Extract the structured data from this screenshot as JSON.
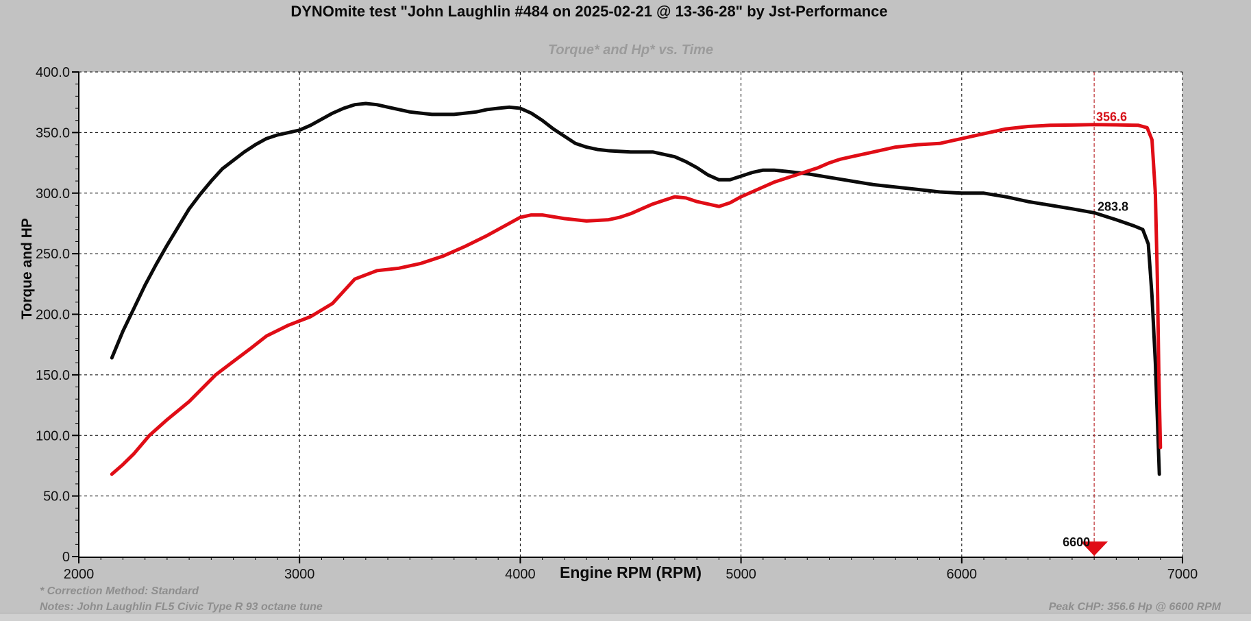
{
  "window_title": "DYNOmite test \"John Laughlin #484 on 2025-02-21 @ 13-36-28\" by Jst-Performance",
  "chart": {
    "subtitle": "Torque* and Hp* vs. Time",
    "footer": {
      "correction": "* Correction Method: Standard",
      "notes": "Notes: John Laughlin FL5 Civic Type R 93 octane tune",
      "peak": "Peak CHP: 356.6 Hp @ 6600 RPM"
    }
  },
  "colors": {
    "background": "#c2c2c2",
    "plot_background": "#ffffff",
    "grid": "#000000",
    "torque_curve": "#0b0b0b",
    "hp_curve": "#e00d16",
    "marker_line": "#c13c3e",
    "subtitle_gray": "#9b9b9b",
    "footer_gray": "#8e8e8e"
  },
  "chart_data": {
    "type": "line",
    "title": "DYNOmite test \"John Laughlin #484 on 2025-02-21 @ 13-36-28\" by Jst-Performance",
    "subtitle": "Torque* and Hp* vs. Time",
    "xlabel": "Engine RPM (RPM)",
    "ylabel": "Torque and HP",
    "xlim": [
      2000,
      7000
    ],
    "ylim": [
      0,
      400
    ],
    "grid": true,
    "legend": "none",
    "x_ticks": [
      {
        "v": 2000,
        "label": "2000"
      },
      {
        "v": 3000,
        "label": "3000"
      },
      {
        "v": 4000,
        "label": "4000"
      },
      {
        "v": 5000,
        "label": "5000"
      },
      {
        "v": 6000,
        "label": "6000"
      },
      {
        "v": 7000,
        "label": "7000"
      }
    ],
    "x_minor_step": 100,
    "y_ticks": [
      {
        "v": 0,
        "label": "0"
      },
      {
        "v": 50,
        "label": "50.0"
      },
      {
        "v": 100,
        "label": "100.0"
      },
      {
        "v": 150,
        "label": "150.0"
      },
      {
        "v": 200,
        "label": "200.0"
      },
      {
        "v": 250,
        "label": "250.0"
      },
      {
        "v": 300,
        "label": "300.0"
      },
      {
        "v": 350,
        "label": "350.0"
      },
      {
        "v": 400,
        "label": "400.0"
      }
    ],
    "y_minor_step": 10,
    "series": [
      {
        "name": "Torque*",
        "color": "#0b0b0b",
        "width": 5,
        "points": [
          [
            2150,
            164
          ],
          [
            2200,
            186
          ],
          [
            2250,
            205
          ],
          [
            2300,
            224
          ],
          [
            2350,
            241
          ],
          [
            2400,
            257
          ],
          [
            2450,
            272
          ],
          [
            2500,
            287
          ],
          [
            2550,
            299
          ],
          [
            2600,
            310
          ],
          [
            2650,
            320
          ],
          [
            2700,
            327
          ],
          [
            2750,
            334
          ],
          [
            2800,
            340
          ],
          [
            2850,
            345
          ],
          [
            2900,
            348
          ],
          [
            2950,
            350
          ],
          [
            3000,
            352
          ],
          [
            3050,
            356
          ],
          [
            3100,
            361
          ],
          [
            3150,
            366
          ],
          [
            3200,
            370
          ],
          [
            3250,
            373
          ],
          [
            3300,
            374
          ],
          [
            3350,
            373
          ],
          [
            3400,
            371
          ],
          [
            3450,
            369
          ],
          [
            3500,
            367
          ],
          [
            3550,
            366
          ],
          [
            3600,
            365
          ],
          [
            3700,
            365
          ],
          [
            3750,
            366
          ],
          [
            3800,
            367
          ],
          [
            3850,
            369
          ],
          [
            3900,
            370
          ],
          [
            3950,
            371
          ],
          [
            4000,
            370
          ],
          [
            4050,
            366
          ],
          [
            4100,
            360
          ],
          [
            4150,
            353
          ],
          [
            4200,
            347
          ],
          [
            4250,
            341
          ],
          [
            4300,
            338
          ],
          [
            4350,
            336
          ],
          [
            4400,
            335
          ],
          [
            4500,
            334
          ],
          [
            4600,
            334
          ],
          [
            4650,
            332
          ],
          [
            4700,
            330
          ],
          [
            4750,
            326
          ],
          [
            4800,
            321
          ],
          [
            4850,
            315
          ],
          [
            4900,
            311
          ],
          [
            4950,
            311
          ],
          [
            5000,
            314
          ],
          [
            5050,
            317
          ],
          [
            5100,
            319
          ],
          [
            5150,
            319
          ],
          [
            5200,
            318
          ],
          [
            5300,
            316
          ],
          [
            5400,
            313
          ],
          [
            5500,
            310
          ],
          [
            5600,
            307
          ],
          [
            5700,
            305
          ],
          [
            5800,
            303
          ],
          [
            5900,
            301
          ],
          [
            6000,
            300
          ],
          [
            6100,
            300
          ],
          [
            6200,
            297
          ],
          [
            6300,
            293
          ],
          [
            6400,
            290
          ],
          [
            6500,
            287
          ],
          [
            6600,
            283.8
          ],
          [
            6700,
            278
          ],
          [
            6780,
            273
          ],
          [
            6820,
            270
          ],
          [
            6845,
            258
          ],
          [
            6862,
            215
          ],
          [
            6877,
            160
          ],
          [
            6888,
            105
          ],
          [
            6895,
            68
          ]
        ]
      },
      {
        "name": "Hp*",
        "color": "#e00d16",
        "width": 5,
        "points": [
          [
            2150,
            68
          ],
          [
            2200,
            76
          ],
          [
            2250,
            85
          ],
          [
            2320,
            100
          ],
          [
            2400,
            113
          ],
          [
            2500,
            128
          ],
          [
            2620,
            150
          ],
          [
            2700,
            161
          ],
          [
            2780,
            172
          ],
          [
            2850,
            182
          ],
          [
            2950,
            191
          ],
          [
            3050,
            198
          ],
          [
            3150,
            209
          ],
          [
            3250,
            229
          ],
          [
            3350,
            236
          ],
          [
            3450,
            238
          ],
          [
            3550,
            242
          ],
          [
            3650,
            248
          ],
          [
            3750,
            256
          ],
          [
            3850,
            265
          ],
          [
            3950,
            275
          ],
          [
            4000,
            280
          ],
          [
            4050,
            282
          ],
          [
            4100,
            282
          ],
          [
            4200,
            279
          ],
          [
            4300,
            277
          ],
          [
            4400,
            278
          ],
          [
            4450,
            280
          ],
          [
            4500,
            283
          ],
          [
            4550,
            287
          ],
          [
            4600,
            291
          ],
          [
            4650,
            294
          ],
          [
            4700,
            297
          ],
          [
            4750,
            296
          ],
          [
            4800,
            293
          ],
          [
            4900,
            289
          ],
          [
            4950,
            292
          ],
          [
            5000,
            297
          ],
          [
            5050,
            301
          ],
          [
            5100,
            305
          ],
          [
            5150,
            309
          ],
          [
            5200,
            312
          ],
          [
            5250,
            315
          ],
          [
            5300,
            318
          ],
          [
            5350,
            321
          ],
          [
            5400,
            325
          ],
          [
            5450,
            328
          ],
          [
            5500,
            330
          ],
          [
            5600,
            334
          ],
          [
            5700,
            338
          ],
          [
            5800,
            340
          ],
          [
            5900,
            341
          ],
          [
            5950,
            343
          ],
          [
            6000,
            345
          ],
          [
            6100,
            349
          ],
          [
            6200,
            353
          ],
          [
            6300,
            355
          ],
          [
            6400,
            356
          ],
          [
            6500,
            356.2
          ],
          [
            6600,
            356.6
          ],
          [
            6700,
            356.4
          ],
          [
            6800,
            356
          ],
          [
            6840,
            354
          ],
          [
            6862,
            344
          ],
          [
            6877,
            300
          ],
          [
            6886,
            230
          ],
          [
            6893,
            150
          ],
          [
            6900,
            90
          ]
        ]
      }
    ],
    "annotations": {
      "peak_hp": {
        "text": "356.6",
        "x": 6609,
        "y": 359.5,
        "color": "#d61018"
      },
      "torque_at_marker": {
        "text": "283.8",
        "x": 6615,
        "y": 285.5,
        "color": "#101010"
      },
      "marker": {
        "rpm": 6600,
        "label": "6600",
        "line_color": "#c13c3e",
        "triangle_color": "#e00d16"
      }
    }
  }
}
